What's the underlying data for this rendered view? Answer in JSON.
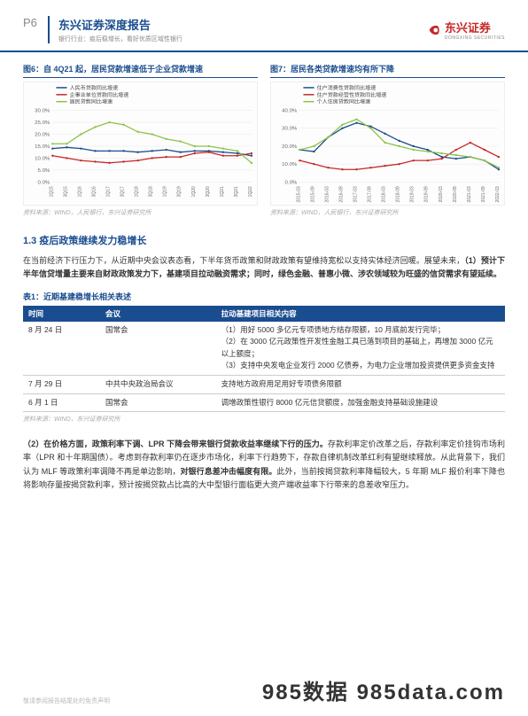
{
  "header": {
    "page": "P6",
    "title": "东兴证券深度报告",
    "subtitle": "银行行业：疫后稳增长，看好优质区域性银行",
    "logo_text": "东兴证券",
    "logo_sub": "DONGXING SECURITIES"
  },
  "chart6": {
    "title": "图6：自 4Q21 起，居民贷款增速低于企业贷款增速",
    "source": "资料来源：WIND，人民银行，东兴证券研究所",
    "legend": [
      "人民币贷款同比增速",
      "企事业单位贷款同比增速",
      "居民贷款同比增速"
    ],
    "colors": [
      "#1a4d8f",
      "#c62828",
      "#8bc34a"
    ],
    "x_labels": [
      "1Q15",
      "3Q15",
      "1Q16",
      "3Q16",
      "1Q17",
      "3Q17",
      "1Q18",
      "3Q18",
      "1Q19",
      "3Q19",
      "1Q20",
      "3Q20",
      "1Q21",
      "3Q21",
      "1Q22"
    ],
    "y_ticks": [
      0,
      5,
      10,
      15,
      20,
      25,
      30
    ],
    "y_fmt": "%",
    "series": [
      [
        14,
        14.5,
        14,
        13,
        13,
        13,
        12.5,
        13,
        13.5,
        12.5,
        13,
        13,
        12.5,
        12,
        11
      ],
      [
        11,
        10,
        9,
        8.5,
        8,
        8.5,
        9,
        10,
        10.5,
        10.5,
        12,
        12.5,
        11,
        11,
        12
      ],
      [
        16,
        16,
        20,
        23,
        25,
        24,
        21,
        20,
        18,
        17,
        15,
        15,
        14,
        13,
        8
      ]
    ],
    "bg": "#ffffff",
    "grid": "#e5e5e5",
    "line_width": 1.3
  },
  "chart7": {
    "title": "图7：居民各类贷款增速均有所下降",
    "source": "资料来源：WIND，人民银行，东兴证券研究所",
    "legend": [
      "住户消费性贷款同比增速",
      "住户贷款经营性贷款同比增速",
      "个人住房贷款同比增速"
    ],
    "colors": [
      "#1a4d8f",
      "#c62828",
      "#8bc34a"
    ],
    "x_labels": [
      "2015-03",
      "2015-09",
      "2016-03",
      "2016-09",
      "2017-03",
      "2017-09",
      "2018-03",
      "2018-09",
      "2019-03",
      "2019-09",
      "2020-03",
      "2020-09",
      "2021-03",
      "2021-09",
      "2022-03"
    ],
    "y_ticks": [
      0,
      10,
      20,
      30,
      40
    ],
    "y_fmt": "%",
    "series": [
      [
        18,
        17,
        25,
        30,
        33,
        31,
        27,
        23,
        20,
        18,
        14,
        13,
        14,
        12,
        7
      ],
      [
        12,
        10,
        8,
        7,
        7,
        8,
        9,
        10,
        12,
        12,
        13,
        18,
        22,
        18,
        14
      ],
      [
        18,
        20,
        25,
        32,
        35,
        30,
        22,
        20,
        18,
        17,
        16,
        15,
        14,
        12,
        8
      ]
    ],
    "bg": "#ffffff",
    "grid": "#e5e5e5",
    "line_width": 1.3
  },
  "section13": {
    "heading": "1.3 疫后政策继续发力稳增长",
    "para": "在当前经济下行压力下，从近期中央会议表态看，下半年货币政策和财政政策有望维持宽松以支持实体经济回暖。展望未来，（1）预计下半年信贷增量主要来自财政政策发力下，基建项目拉动融资需求；同时，绿色金融、普惠小微、涉农领域较为旺盛的信贷需求有望延续。"
  },
  "table1": {
    "title": "表1：近期基建稳增长相关表述",
    "columns": [
      "时间",
      "会议",
      "拉动基建项目相关内容"
    ],
    "rows": [
      [
        "8 月 24 日",
        "国常会",
        "（1）用好 5000 多亿元专项债地方结存限额，10 月底前发行完毕；\n（2）在 3000 亿元政策性开发性金融工具已落到项目的基础上，再增加 3000 亿元以上额度；\n（3）支持中央发电企业发行 2000 亿债券，为电力企业增加投资提供更多资金支持"
      ],
      [
        "7 月 29 日",
        "中共中央政治局会议",
        "支持地方政府用足用好专项债务限额"
      ],
      [
        "6 月 1 日",
        "国常会",
        "调增政策性银行 8000 亿元信贷额度，加强金融支持基础设施建设"
      ]
    ],
    "source": "资料来源：WIND，东兴证券研究所"
  },
  "para2": "（2）在价格方面，政策利率下调、LPR 下降会带来银行贷款收益率继续下行的压力。存款利率定价改革之后，存款利率定价挂钩市场利率（LPR 和十年期国债）。考虑到存款利率仍在逐步市场化，利率下行趋势下，存款自律机制改革红利有望继续释放。从此背景下，我们认为 MLF 等政策利率调降不再是单边影响，对银行息差冲击幅度有限。此外，当前按揭贷款利率降幅较大，5 年期 MLF 报价利率下降也将影响存量按揭贷款利率，预计按揭贷款占比高的大中型银行面临更大资产端收益率下行带来的息差收窄压力。",
  "footer": {
    "note": "敬请参阅报告结尾处的免责声明",
    "watermark": "985数据 985data.com"
  }
}
